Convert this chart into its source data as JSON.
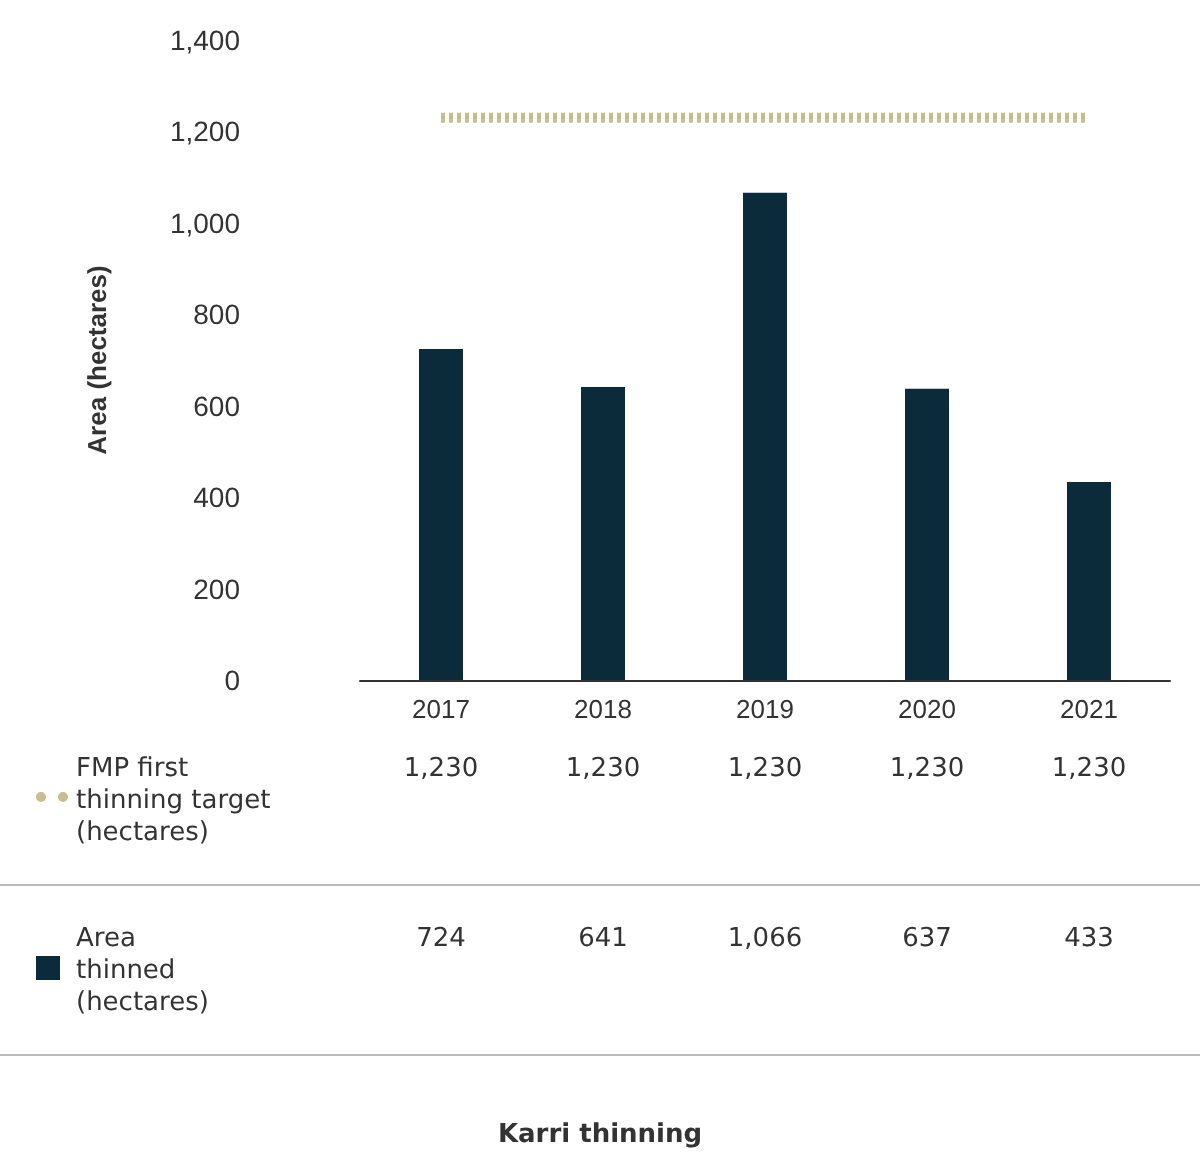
{
  "chart_data": {
    "type": "bar",
    "title": "Karri thinning",
    "ylabel": "Area (hectares)",
    "categories": [
      "2017",
      "2018",
      "2019",
      "2020",
      "2021"
    ],
    "series": [
      {
        "name": "FMP first thinning target (hectares)",
        "type": "line",
        "line_style": "dotted",
        "marker": "none",
        "color": "#c8bd8c",
        "values": [
          1230,
          1230,
          1230,
          1230,
          1230
        ],
        "value_labels": [
          "1,230",
          "1,230",
          "1,230",
          "1,230",
          "1,230"
        ]
      },
      {
        "name": "Area thinned (hectares)",
        "color": "#0b2a3a",
        "values": [
          724,
          641,
          1066,
          637,
          433
        ],
        "value_labels": [
          "724",
          "641",
          "1,066",
          "637",
          "433"
        ]
      }
    ],
    "ylim": [
      0,
      1400
    ],
    "yticks": [
      0,
      200,
      400,
      600,
      800,
      {
        "value": 1000,
        "label": "1,000"
      },
      {
        "value": 1200,
        "label": "1,200"
      },
      {
        "value": 1400,
        "label": "1,400"
      }
    ],
    "grid": false,
    "legend": "bottom"
  }
}
